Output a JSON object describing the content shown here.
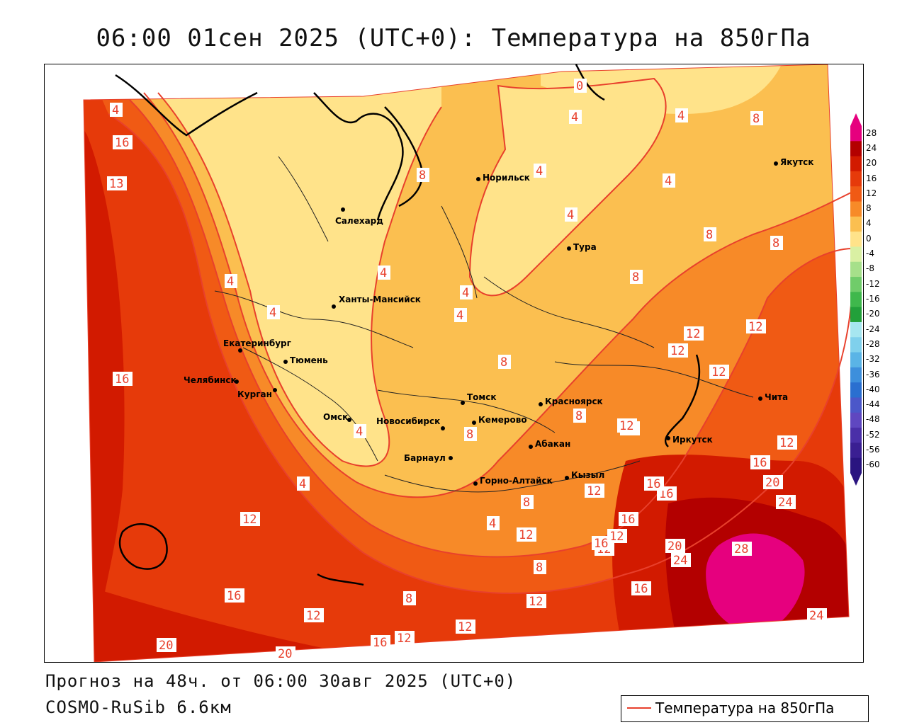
{
  "title": "06:00 01сен 2025 (UTC+0): Температура на 850гПа",
  "footer": {
    "forecast": "Прогноз на 48ч. от 06:00 30авг 2025 (UTC+0)",
    "model": "COSMO-RuSib 6.6км"
  },
  "legend": {
    "line_label": "Температура на 850гПа",
    "line_color": "#e8402c"
  },
  "colorbar": {
    "ticks": [
      "28",
      "24",
      "20",
      "16",
      "12",
      "8",
      "4",
      "0",
      "-4",
      "-8",
      "-12",
      "-16",
      "-20",
      "-24",
      "-28",
      "-32",
      "-36",
      "-40",
      "-44",
      "-48",
      "-52",
      "-56",
      "-60"
    ],
    "colors": [
      "#e6007e",
      "#b30000",
      "#d21a00",
      "#e63a0a",
      "#f05a14",
      "#f78a28",
      "#fbbf50",
      "#ffe38a",
      "#d9f0a3",
      "#a6e08a",
      "#70cc6a",
      "#3fb84c",
      "#22a03a",
      "#a6e6f0",
      "#7fd0ec",
      "#5ab4e6",
      "#3d8fdc",
      "#2a6fd0",
      "#4b57c9",
      "#5f47c0",
      "#4a2fa8",
      "#3a1f92",
      "#2a1480"
    ]
  },
  "cities": [
    {
      "name": "Якутск"
    },
    {
      "name": "Норильск"
    },
    {
      "name": "Салехард"
    },
    {
      "name": "Тура"
    },
    {
      "name": "Ханты-Мансийск"
    },
    {
      "name": "Екатеринбург"
    },
    {
      "name": "Тюмень"
    },
    {
      "name": "Челябинск"
    },
    {
      "name": "Курган"
    },
    {
      "name": "Томск"
    },
    {
      "name": "Красноярск"
    },
    {
      "name": "Омск"
    },
    {
      "name": "Новосибирск"
    },
    {
      "name": "Кемерово"
    },
    {
      "name": "Абакан"
    },
    {
      "name": "Барнаул"
    },
    {
      "name": "Иркутск"
    },
    {
      "name": "Чита"
    },
    {
      "name": "Кызыл"
    },
    {
      "name": "Горно-Алтайск"
    }
  ],
  "contour_labels": [
    "4",
    "0",
    "4",
    "4",
    "8",
    "8",
    "4",
    "4",
    "4",
    "4",
    "4",
    "4",
    "8",
    "8",
    "8",
    "8",
    "4",
    "4",
    "4",
    "4",
    "8",
    "8",
    "12",
    "12",
    "12",
    "12",
    "12",
    "12",
    "12",
    "16",
    "20",
    "24",
    "16",
    "12",
    "16",
    "12",
    "16",
    "16",
    "12",
    "20",
    "24",
    "28",
    "16",
    "24",
    "8",
    "12",
    "12",
    "8",
    "12",
    "16",
    "12",
    "20",
    "20",
    "16",
    "12",
    "4",
    "8",
    "16",
    "13",
    "16",
    "12"
  ]
}
